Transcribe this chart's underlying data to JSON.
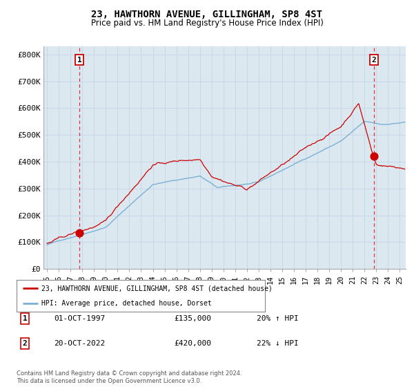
{
  "title": "23, HAWTHORN AVENUE, GILLINGHAM, SP8 4ST",
  "subtitle": "Price paid vs. HM Land Registry's House Price Index (HPI)",
  "ylabel_ticks": [
    "£0",
    "£100K",
    "£200K",
    "£300K",
    "£400K",
    "£500K",
    "£600K",
    "£700K",
    "£800K"
  ],
  "ytick_vals": [
    0,
    100000,
    200000,
    300000,
    400000,
    500000,
    600000,
    700000,
    800000
  ],
  "ylim": [
    0,
    830000
  ],
  "xlim_start": 1994.7,
  "xlim_end": 2025.5,
  "sale1_x": 1997.75,
  "sale1_y": 135000,
  "sale2_x": 2022.8,
  "sale2_y": 420000,
  "red_color": "#cc0000",
  "blue_color": "#7ab0d4",
  "dashed_red": "#dd2222",
  "grid_color": "#c8d8e8",
  "chart_bg": "#dce8f0",
  "background_color": "#ffffff",
  "legend_label1": "23, HAWTHORN AVENUE, GILLINGHAM, SP8 4ST (detached house)",
  "legend_label2": "HPI: Average price, detached house, Dorset",
  "footnote": "Contains HM Land Registry data © Crown copyright and database right 2024.\nThis data is licensed under the Open Government Licence v3.0.",
  "xtick_years": [
    1995,
    1996,
    1997,
    1998,
    1999,
    2000,
    2001,
    2002,
    2003,
    2004,
    2005,
    2006,
    2007,
    2008,
    2009,
    2010,
    2011,
    2012,
    2013,
    2014,
    2015,
    2016,
    2017,
    2018,
    2019,
    2020,
    2021,
    2022,
    2023,
    2024,
    2025
  ]
}
